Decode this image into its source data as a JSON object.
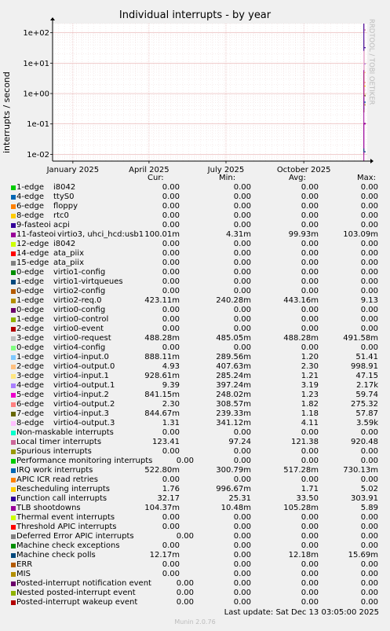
{
  "title": "Individual interrupts - by year",
  "ylabel": "interrupts / second",
  "side_label": "RRDTOOL / TOBI OETIKER",
  "columns": {
    "cur": "Cur:",
    "min": "Min:",
    "avg": "Avg:",
    "max": "Max:"
  },
  "last_update": "Last update:  Sat Dec 13 03:05:00 2025",
  "footer": "Munin 2.0.76",
  "chart_data": {
    "type": "line",
    "title": "Individual interrupts - by year",
    "ylabel": "interrupts / second",
    "y_scale": "log",
    "ylim": [
      0.006,
      200
    ],
    "y_ticks": [
      {
        "v": 100,
        "l": "1e+02"
      },
      {
        "v": 10,
        "l": "1e+01"
      },
      {
        "v": 1,
        "l": "1e+00"
      },
      {
        "v": 0.1,
        "l": "1e-01"
      },
      {
        "v": 0.01,
        "l": "1e-02"
      }
    ],
    "xlim": [
      "2024-12-08",
      "2025-12-15"
    ],
    "x_ticks": [
      {
        "d": "2025-01-01",
        "l": "January 2025"
      },
      {
        "d": "2025-04-01",
        "l": "April 2025"
      },
      {
        "d": "2025-07-01",
        "l": "July 2025"
      },
      {
        "d": "2025-10-01",
        "l": "October 2025"
      }
    ],
    "grid": true,
    "data_start": "2025-12-11",
    "series": [
      {
        "name": "1-edge",
        "label": "i8042",
        "color": "#00cc00",
        "cur": "0.00",
        "min": "0.00",
        "avg": "0.00",
        "max": "0.00"
      },
      {
        "name": "4-edge",
        "label": "ttyS0",
        "color": "#0066b3",
        "cur": "0.00",
        "min": "0.00",
        "avg": "0.00",
        "max": "0.00"
      },
      {
        "name": "6-edge",
        "label": "floppy",
        "color": "#ff8000",
        "cur": "0.00",
        "min": "0.00",
        "avg": "0.00",
        "max": "0.00"
      },
      {
        "name": "8-edge",
        "label": "rtc0",
        "color": "#ffcc00",
        "cur": "0.00",
        "min": "0.00",
        "avg": "0.00",
        "max": "0.00"
      },
      {
        "name": "9-fasteoi",
        "label": "acpi",
        "color": "#330099",
        "cur": "0.00",
        "min": "0.00",
        "avg": "0.00",
        "max": "0.00"
      },
      {
        "name": "11-fasteoi",
        "label": "virtio3, uhci_hcd:usb1",
        "color": "#990099",
        "cur": "100.01m",
        "min": "4.31m",
        "avg": "99.93m",
        "max": "103.09m"
      },
      {
        "name": "12-edge",
        "label": "i8042",
        "color": "#ccff00",
        "cur": "0.00",
        "min": "0.00",
        "avg": "0.00",
        "max": "0.00"
      },
      {
        "name": "14-edge",
        "label": "ata_piix",
        "color": "#ff0000",
        "cur": "0.00",
        "min": "0.00",
        "avg": "0.00",
        "max": "0.00"
      },
      {
        "name": "15-edge",
        "label": "ata_piix",
        "color": "#808080",
        "cur": "0.00",
        "min": "0.00",
        "avg": "0.00",
        "max": "0.00"
      },
      {
        "name": "0-edge",
        "label": "virtio1-config",
        "color": "#008f00",
        "cur": "0.00",
        "min": "0.00",
        "avg": "0.00",
        "max": "0.00"
      },
      {
        "name": "1-edge",
        "label": "virtio1-virtqueues",
        "color": "#00487d",
        "cur": "0.00",
        "min": "0.00",
        "avg": "0.00",
        "max": "0.00"
      },
      {
        "name": "0-edge",
        "label": "virtio2-config",
        "color": "#b35a00",
        "cur": "0.00",
        "min": "0.00",
        "avg": "0.00",
        "max": "0.00"
      },
      {
        "name": "1-edge",
        "label": "virtio2-req.0",
        "color": "#b38f00",
        "cur": "423.11m",
        "min": "240.28m",
        "avg": "443.16m",
        "max": "9.13"
      },
      {
        "name": "0-edge",
        "label": "virtio0-config",
        "color": "#6b006b",
        "cur": "0.00",
        "min": "0.00",
        "avg": "0.00",
        "max": "0.00"
      },
      {
        "name": "1-edge",
        "label": "virtio0-control",
        "color": "#8fb300",
        "cur": "0.00",
        "min": "0.00",
        "avg": "0.00",
        "max": "0.00"
      },
      {
        "name": "2-edge",
        "label": "virtio0-event",
        "color": "#b30000",
        "cur": "0.00",
        "min": "0.00",
        "avg": "0.00",
        "max": "0.00"
      },
      {
        "name": "3-edge",
        "label": "virtio0-request",
        "color": "#bebebe",
        "cur": "488.28m",
        "min": "485.05m",
        "avg": "488.28m",
        "max": "491.58m"
      },
      {
        "name": "0-edge",
        "label": "virtio4-config",
        "color": "#80ff80",
        "cur": "0.00",
        "min": "0.00",
        "avg": "0.00",
        "max": "0.00"
      },
      {
        "name": "1-edge",
        "label": "virtio4-input.0",
        "color": "#80c9ff",
        "cur": "888.11m",
        "min": "289.56m",
        "avg": "1.20",
        "max": "51.41"
      },
      {
        "name": "2-edge",
        "label": "virtio4-output.0",
        "color": "#ffc080",
        "cur": "4.93",
        "min": "407.63m",
        "avg": "2.30",
        "max": "998.91"
      },
      {
        "name": "3-edge",
        "label": "virtio4-input.1",
        "color": "#ffe680",
        "cur": "928.61m",
        "min": "285.24m",
        "avg": "1.21",
        "max": "47.15"
      },
      {
        "name": "4-edge",
        "label": "virtio4-output.1",
        "color": "#aa80ff",
        "cur": "9.39",
        "min": "397.24m",
        "avg": "3.19",
        "max": "2.17k"
      },
      {
        "name": "5-edge",
        "label": "virtio4-input.2",
        "color": "#ee00cc",
        "cur": "841.15m",
        "min": "248.02m",
        "avg": "1.23",
        "max": "59.74"
      },
      {
        "name": "6-edge",
        "label": "virtio4-output.2",
        "color": "#ff8080",
        "cur": "2.30",
        "min": "308.57m",
        "avg": "1.82",
        "max": "275.32"
      },
      {
        "name": "7-edge",
        "label": "virtio4-input.3",
        "color": "#666600",
        "cur": "844.67m",
        "min": "239.33m",
        "avg": "1.18",
        "max": "57.87"
      },
      {
        "name": "8-edge",
        "label": "virtio4-output.3",
        "color": "#ffbfff",
        "cur": "1.31",
        "min": "341.12m",
        "avg": "4.11",
        "max": "3.59k"
      },
      {
        "name": "Non-maskable interrupts",
        "label": "",
        "color": "#00ffcc",
        "cur": "0.00",
        "min": "0.00",
        "avg": "0.00",
        "max": "0.00"
      },
      {
        "name": "Local timer interrupts",
        "label": "",
        "color": "#cc6699",
        "cur": "123.41",
        "min": "97.24",
        "avg": "121.38",
        "max": "920.48"
      },
      {
        "name": "Spurious interrupts",
        "label": "",
        "color": "#999900",
        "cur": "0.00",
        "min": "0.00",
        "avg": "0.00",
        "max": "0.00"
      },
      {
        "name": "Performance monitoring interrupts",
        "label": "",
        "color": "#00cc00",
        "cur": "0.00",
        "min": "0.00",
        "avg": "0.00",
        "max": "0.00"
      },
      {
        "name": "IRQ work interrupts",
        "label": "",
        "color": "#0066b3",
        "cur": "522.80m",
        "min": "300.79m",
        "avg": "517.28m",
        "max": "730.13m"
      },
      {
        "name": "APIC ICR read retries",
        "label": "",
        "color": "#ff8000",
        "cur": "0.00",
        "min": "0.00",
        "avg": "0.00",
        "max": "0.00"
      },
      {
        "name": "Rescheduling interrupts",
        "label": "",
        "color": "#ffcc00",
        "cur": "1.76",
        "min": "996.67m",
        "avg": "1.71",
        "max": "5.02"
      },
      {
        "name": "Function call interrupts",
        "label": "",
        "color": "#330099",
        "cur": "32.17",
        "min": "25.31",
        "avg": "33.50",
        "max": "303.91"
      },
      {
        "name": "TLB shootdowns",
        "label": "",
        "color": "#990099",
        "cur": "104.37m",
        "min": "10.48m",
        "avg": "105.28m",
        "max": "5.89"
      },
      {
        "name": "Thermal event interrupts",
        "label": "",
        "color": "#ccff00",
        "cur": "0.00",
        "min": "0.00",
        "avg": "0.00",
        "max": "0.00"
      },
      {
        "name": "Threshold APIC interrupts",
        "label": "",
        "color": "#ff0000",
        "cur": "0.00",
        "min": "0.00",
        "avg": "0.00",
        "max": "0.00"
      },
      {
        "name": "Deferred Error APIC interrupts",
        "label": "",
        "color": "#808080",
        "cur": "0.00",
        "min": "0.00",
        "avg": "0.00",
        "max": "0.00"
      },
      {
        "name": "Machine check exceptions",
        "label": "",
        "color": "#008f00",
        "cur": "0.00",
        "min": "0.00",
        "avg": "0.00",
        "max": "0.00"
      },
      {
        "name": "Machine check polls",
        "label": "",
        "color": "#00487d",
        "cur": "12.17m",
        "min": "0.00",
        "avg": "12.18m",
        "max": "15.69m"
      },
      {
        "name": "ERR",
        "label": "",
        "color": "#b35a00",
        "cur": "0.00",
        "min": "0.00",
        "avg": "0.00",
        "max": "0.00"
      },
      {
        "name": "MIS",
        "label": "",
        "color": "#b38f00",
        "cur": "0.00",
        "min": "0.00",
        "avg": "0.00",
        "max": "0.00"
      },
      {
        "name": "Posted-interrupt notification event",
        "label": "",
        "color": "#6b006b",
        "cur": "0.00",
        "min": "0.00",
        "avg": "0.00",
        "max": "0.00"
      },
      {
        "name": "Nested posted-interrupt event",
        "label": "",
        "color": "#8fb300",
        "cur": "0.00",
        "min": "0.00",
        "avg": "0.00",
        "max": "0.00"
      },
      {
        "name": "Posted-interrupt wakeup event",
        "label": "",
        "color": "#b30000",
        "cur": "0.00",
        "min": "0.00",
        "avg": "0.00",
        "max": "0.00"
      }
    ]
  }
}
